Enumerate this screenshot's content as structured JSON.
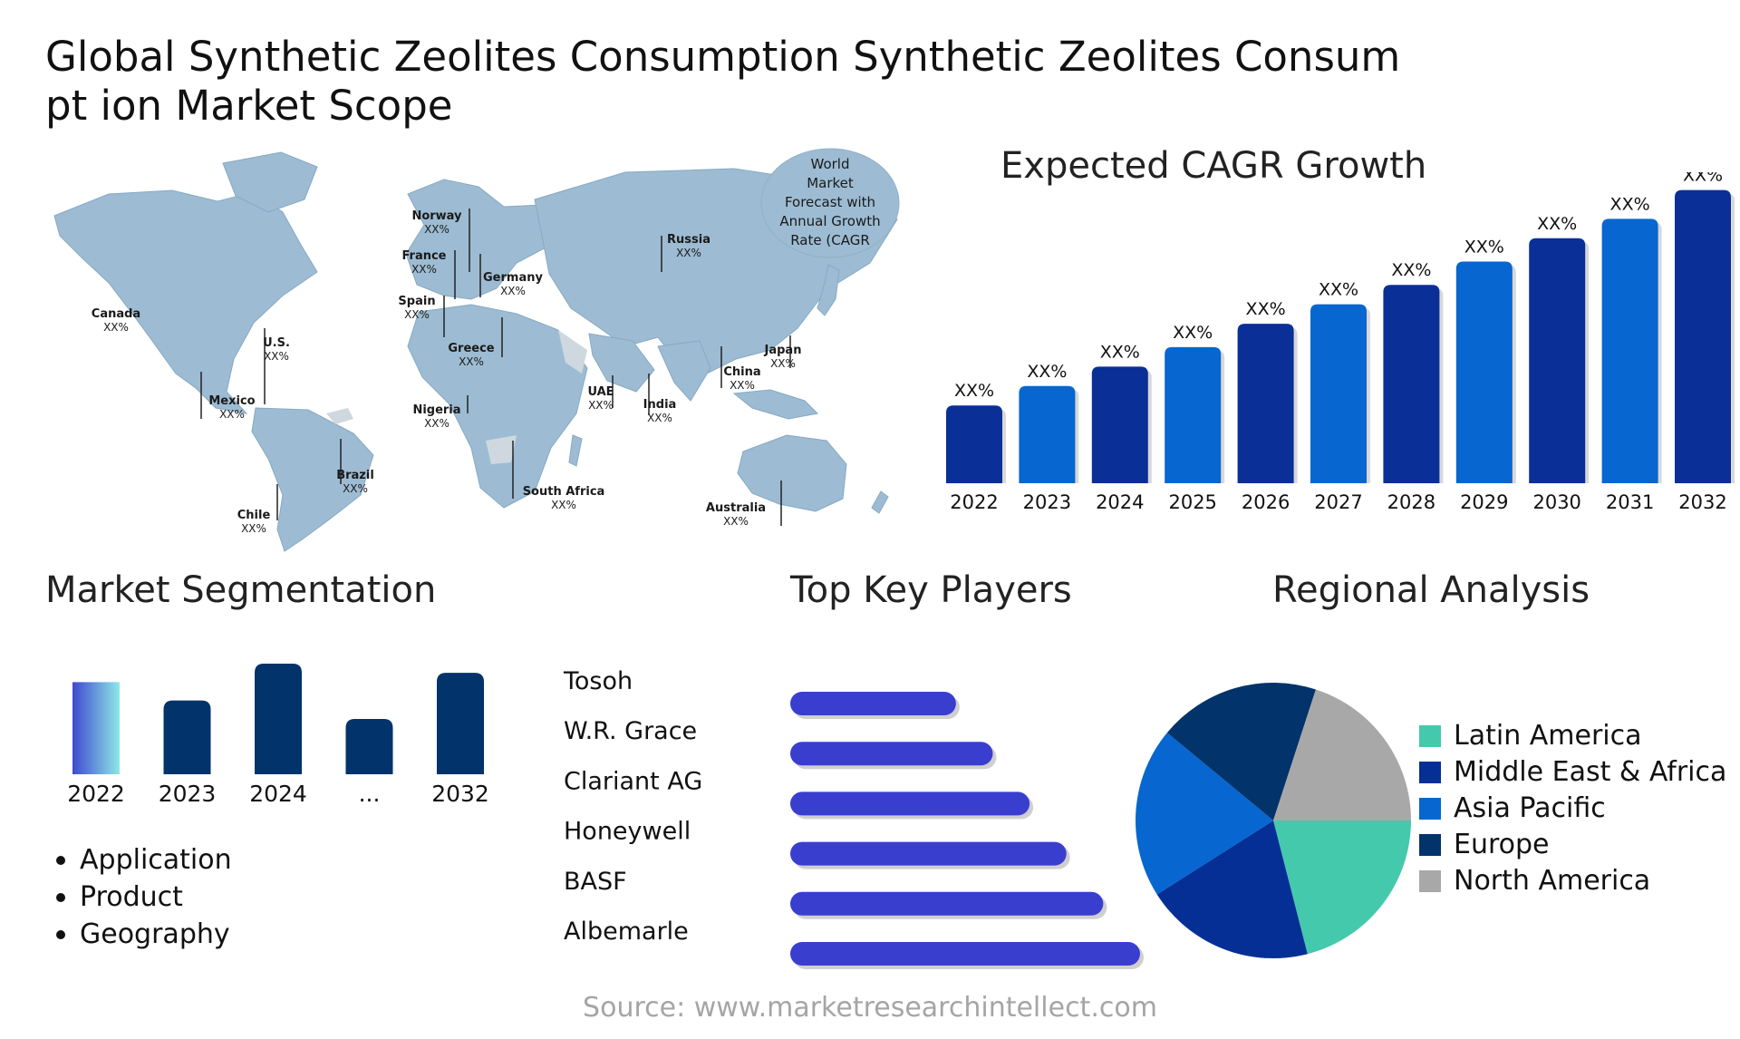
{
  "title": "Global Synthetic Zeolites Consumption Synthetic Zeolites Consumpt ion Market Scope",
  "map": {
    "bubble_text": [
      "World",
      "Market",
      "Forecast with",
      "Annual Growth",
      "Rate (CAGR"
    ],
    "labels": [
      {
        "name": "Canada",
        "value": "XX%"
      },
      {
        "name": "U.S.",
        "value": "XX%"
      },
      {
        "name": "Mexico",
        "value": "XX%"
      },
      {
        "name": "Brazil",
        "value": "XX%"
      },
      {
        "name": "Chile",
        "value": "XX%"
      },
      {
        "name": "Norway",
        "value": "XX%"
      },
      {
        "name": "France",
        "value": "XX%"
      },
      {
        "name": "Spain",
        "value": "XX%"
      },
      {
        "name": "Germany",
        "value": "XX%"
      },
      {
        "name": "Greece",
        "value": "XX%"
      },
      {
        "name": "Nigeria",
        "value": "XX%"
      },
      {
        "name": "South Africa",
        "value": "XX%"
      },
      {
        "name": "UAE",
        "value": "XX%"
      },
      {
        "name": "India",
        "value": "XX%"
      },
      {
        "name": "Russia",
        "value": "XX%"
      },
      {
        "name": "China",
        "value": "XX%"
      },
      {
        "name": "Japan",
        "value": "XX%"
      },
      {
        "name": "Australia",
        "value": "XX%"
      }
    ]
  },
  "cagr": {
    "title": "Expected CAGR Growth",
    "colors": [
      "#0a2f96",
      "#0766cf"
    ]
  },
  "segmentation": {
    "title": "Market Segmentation",
    "bullets": [
      "Application",
      "Product",
      "Geography"
    ]
  },
  "players": {
    "title": "Top Key Players",
    "bar_color": "#3a3ecf"
  },
  "regional": {
    "title": "Regional Analysis"
  },
  "source": "Source: www.marketresearchintellect.com",
  "chart_data": [
    {
      "type": "bar",
      "title": "Expected CAGR Growth",
      "categories": [
        "2022",
        "2023",
        "2024",
        "2025",
        "2026",
        "2027",
        "2028",
        "2029",
        "2030",
        "2031",
        "2032"
      ],
      "values": [
        1.0,
        1.25,
        1.5,
        1.75,
        2.05,
        2.3,
        2.55,
        2.85,
        3.15,
        3.4,
        3.77
      ],
      "data_labels": [
        "XX%",
        "XX%",
        "XX%",
        "XX%",
        "XX%",
        "XX%",
        "XX%",
        "XX%",
        "XX%",
        "XX%",
        "XX%"
      ],
      "ylim": [
        0,
        3.8
      ],
      "grid": false
    },
    {
      "type": "bar",
      "title": "Market Segmentation",
      "categories": [
        "2022",
        "2023",
        "2024",
        "...",
        "2032"
      ],
      "values": [
        1.0,
        0.8,
        1.2,
        0.6,
        1.1
      ],
      "ylim": [
        0,
        1.2
      ],
      "colors": [
        "gradient:#3f49cf-#8ee8e6",
        "#02336a",
        "#02336a",
        "#02336a",
        "#02336a"
      ]
    },
    {
      "type": "bar",
      "orientation": "horizontal",
      "title": "Top Key Players",
      "categories": [
        "Tosoh",
        "W.R. Grace",
        "Clariant AG",
        "Honeywell",
        "BASF",
        "Albemarle"
      ],
      "values": [
        180,
        220,
        260,
        300,
        340,
        380
      ],
      "xlim": [
        0,
        380
      ]
    },
    {
      "type": "pie",
      "title": "Regional Analysis",
      "labels": [
        "Latin America",
        "Middle East & Africa",
        "Asia Pacific",
        "Europe",
        "North America"
      ],
      "values": [
        21,
        20,
        20,
        19,
        20
      ],
      "colors": [
        "#45c9ad",
        "#062f96",
        "#0766cf",
        "#02336a",
        "#a8a8a8"
      ],
      "legend": "right"
    }
  ]
}
